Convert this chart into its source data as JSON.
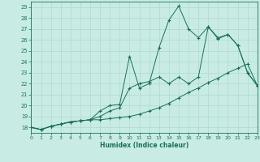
{
  "xlabel": "Humidex (Indice chaleur)",
  "bg_color": "#c8ece4",
  "grid_color": "#b0d8d0",
  "line_color": "#1a6e5a",
  "xlim": [
    0,
    23
  ],
  "ylim": [
    17.5,
    29.5
  ],
  "xticks": [
    0,
    1,
    2,
    3,
    4,
    5,
    6,
    7,
    8,
    9,
    10,
    11,
    12,
    13,
    14,
    15,
    16,
    17,
    18,
    19,
    20,
    21,
    22,
    23
  ],
  "yticks": [
    18,
    19,
    20,
    21,
    22,
    23,
    24,
    25,
    26,
    27,
    28,
    29
  ],
  "line1_x": [
    0,
    1,
    2,
    3,
    4,
    5,
    6,
    7,
    8,
    9,
    10,
    11,
    12,
    13,
    14,
    15,
    16,
    17,
    18,
    19,
    20,
    21,
    22,
    23
  ],
  "line1_y": [
    18.0,
    17.8,
    18.1,
    18.3,
    18.5,
    18.6,
    18.7,
    18.7,
    18.8,
    18.9,
    19.0,
    19.2,
    19.5,
    19.8,
    20.2,
    20.7,
    21.2,
    21.6,
    22.1,
    22.5,
    23.0,
    23.4,
    23.8,
    21.8
  ],
  "line2_x": [
    0,
    1,
    2,
    3,
    4,
    5,
    6,
    7,
    8,
    9,
    10,
    11,
    12,
    13,
    14,
    15,
    16,
    17,
    18,
    19,
    20,
    21,
    22,
    23
  ],
  "line2_y": [
    18.0,
    17.8,
    18.1,
    18.3,
    18.5,
    18.6,
    18.7,
    19.0,
    19.5,
    19.8,
    21.6,
    22.0,
    22.2,
    22.6,
    22.0,
    22.6,
    22.0,
    22.6,
    27.2,
    26.2,
    26.5,
    25.5,
    23.0,
    21.8
  ],
  "line3_x": [
    0,
    1,
    2,
    3,
    4,
    5,
    6,
    7,
    8,
    9,
    10,
    11,
    12,
    13,
    14,
    15,
    16,
    17,
    18,
    19,
    20,
    21,
    22,
    23
  ],
  "line3_y": [
    18.0,
    17.8,
    18.1,
    18.3,
    18.5,
    18.6,
    18.7,
    19.5,
    20.0,
    20.1,
    24.5,
    21.6,
    22.0,
    25.3,
    27.8,
    29.1,
    27.0,
    26.2,
    27.2,
    26.1,
    26.5,
    25.5,
    23.0,
    21.8
  ]
}
